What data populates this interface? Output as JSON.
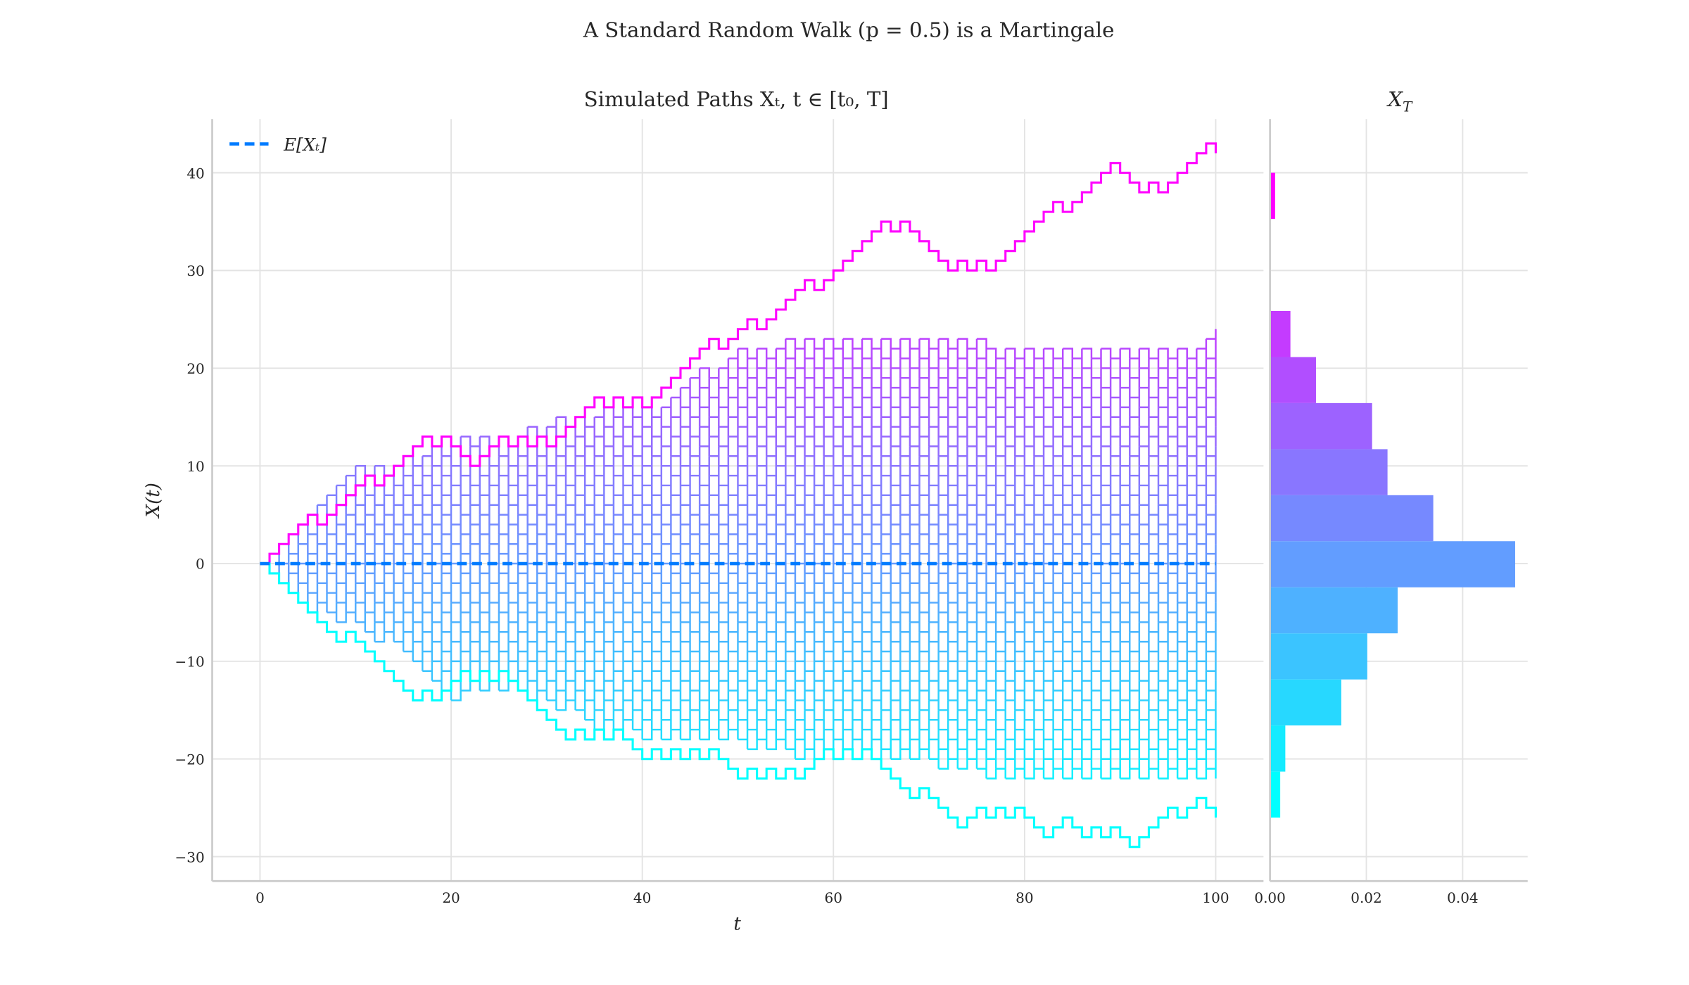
{
  "figure": {
    "suptitle": "A Standard Random Walk (p = 0.5) is a Martingale"
  },
  "chart_data": [
    {
      "type": "line",
      "title": "Simulated Paths Xₜ, t ∈ [t₀, T]",
      "xlabel": "t",
      "ylabel": "X(t)",
      "xlim": [
        -5,
        105
      ],
      "ylim": [
        -32.5,
        45.5
      ],
      "xticks": [
        0,
        20,
        40,
        60,
        80,
        100
      ],
      "xtick_labels": [
        "0",
        "20",
        "40",
        "60",
        "80",
        "100"
      ],
      "yticks": [
        -30,
        -20,
        -10,
        0,
        10,
        20,
        30,
        40
      ],
      "ytick_labels": [
        "−30",
        "−20",
        "−10",
        "0",
        "10",
        "20",
        "30",
        "40"
      ],
      "grid": true,
      "colormap": "cool",
      "legend": {
        "position": "upper-left",
        "entries": [
          {
            "label": "E[Xₜ]",
            "style": "dashed",
            "color": "#007bff"
          }
        ]
      },
      "mean_line": {
        "label": "E[Xₜ]",
        "value": 0,
        "t_range": [
          0,
          100
        ],
        "color": "#007bff"
      },
      "path_envelope": {
        "t": [
          0,
          5,
          10,
          15,
          20,
          25,
          30,
          35,
          40,
          45,
          50,
          55,
          60,
          65,
          70,
          75,
          80,
          85,
          90,
          95,
          100
        ],
        "upper": [
          0,
          5,
          10,
          11,
          13,
          13,
          15,
          16,
          16,
          20,
          22,
          23,
          23,
          23,
          23,
          23,
          22,
          22,
          22,
          22,
          24
        ],
        "lower": [
          0,
          -5,
          -7,
          -10,
          -14,
          -13,
          -15,
          -17,
          -18,
          -18,
          -19,
          -20,
          -21,
          -20,
          -21,
          -22,
          -22,
          -22,
          -22,
          -22,
          -22
        ]
      },
      "highlighted_paths": [
        {
          "color": "#ff00ff",
          "points": [
            [
              0,
              0
            ],
            [
              5,
              5
            ],
            [
              6,
              4
            ],
            [
              8,
              6
            ],
            [
              10,
              8
            ],
            [
              12,
              8
            ],
            [
              19,
              13
            ],
            [
              22,
              10
            ],
            [
              30,
              12
            ],
            [
              40,
              16
            ],
            [
              44,
              20
            ],
            [
              47,
              23
            ],
            [
              49,
              23
            ],
            [
              50,
              25
            ],
            [
              51,
              26
            ],
            [
              52,
              25
            ],
            [
              53,
              26
            ],
            [
              57,
              30
            ],
            [
              58,
              29
            ],
            [
              59,
              28
            ],
            [
              61,
              30
            ],
            [
              65,
              34
            ],
            [
              66,
              33
            ],
            [
              67,
              34
            ],
            [
              68,
              35
            ],
            [
              73,
              30
            ],
            [
              74,
              31
            ],
            [
              75,
              30
            ],
            [
              76,
              31
            ],
            [
              77,
              30
            ],
            [
              83,
              36
            ],
            [
              84,
              35
            ],
            [
              89,
              40
            ],
            [
              92,
              37
            ],
            [
              93,
              38
            ],
            [
              94,
              39
            ],
            [
              95,
              38
            ],
            [
              99,
              42
            ],
            [
              100,
              40
            ]
          ]
        },
        {
          "color": "#00ffff",
          "points": [
            [
              0,
              0
            ],
            [
              5,
              -5
            ],
            [
              10,
              -7
            ],
            [
              19,
              -14
            ],
            [
              25,
              -12
            ],
            [
              33,
              -17
            ],
            [
              38,
              -18
            ],
            [
              48,
              -20
            ],
            [
              56,
              -21
            ],
            [
              60,
              -20
            ],
            [
              63,
              -20
            ],
            [
              68,
              -24
            ],
            [
              70,
              -24
            ],
            [
              72,
              -28
            ],
            [
              73,
              -27
            ],
            [
              75,
              -25
            ],
            [
              77,
              -26
            ],
            [
              79,
              -25
            ],
            [
              82,
              -27
            ],
            [
              84,
              -26
            ],
            [
              87,
              -27
            ],
            [
              89,
              -28
            ],
            [
              91,
              -29
            ],
            [
              93,
              -27
            ],
            [
              95,
              -26
            ],
            [
              97,
              -25
            ],
            [
              98,
              -24
            ],
            [
              100,
              -26
            ]
          ]
        }
      ]
    },
    {
      "type": "bar",
      "orientation": "horizontal",
      "title": {
        "base": "X",
        "sub": "T"
      },
      "xlim": [
        0,
        0.0535
      ],
      "xticks": [
        0.0,
        0.02,
        0.04
      ],
      "xtick_labels": [
        "0.00",
        "0.02",
        "0.04"
      ],
      "shares_y_with": "Simulated Paths",
      "grid": true,
      "colormap": "cool",
      "bin_edges": [
        40,
        35.29,
        30.57,
        25.86,
        21.14,
        16.43,
        11.71,
        7.0,
        2.29,
        -2.43,
        -7.14,
        -11.86,
        -16.57,
        -21.29,
        -26
      ],
      "densities": [
        0.00106,
        0,
        0,
        0.00424,
        0.00955,
        0.0212,
        0.0244,
        0.0339,
        0.0509,
        0.0265,
        0.0202,
        0.0148,
        0.00318,
        0.00212
      ]
    }
  ]
}
